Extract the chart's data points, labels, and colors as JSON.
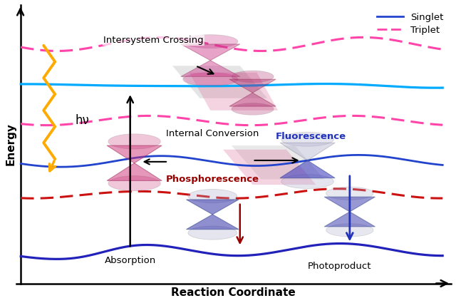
{
  "xlabel": "Reaction Coordinate",
  "ylabel": "Energy",
  "bg_color": "#ffffff",
  "s0_color": "#2222bb",
  "s1_color": "#2244cc",
  "s2_color": "#00aaff",
  "t1_color": "#cc1111",
  "t2_color": "#ff44aa",
  "t3_color": "#ff44aa",
  "absorption_color": "#ffaa00",
  "fluorescence_color": "#2233bb",
  "phosphorescence_color": "#990000",
  "xlim": [
    0,
    10
  ],
  "ylim": [
    0,
    10
  ]
}
